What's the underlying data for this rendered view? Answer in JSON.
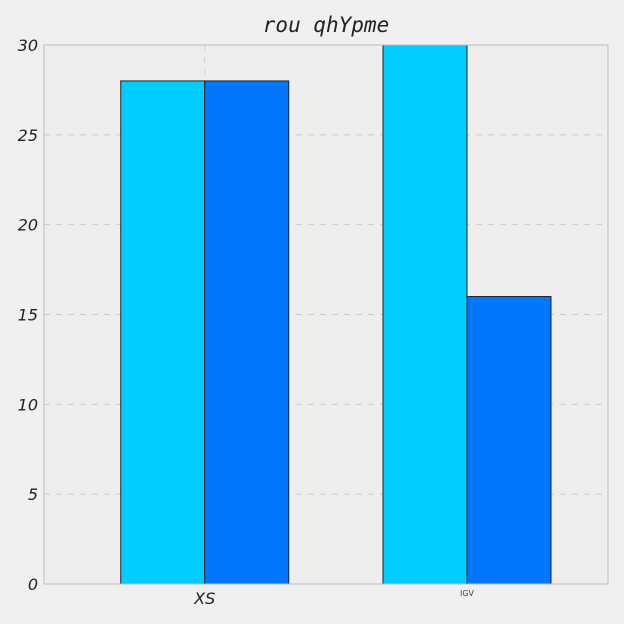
{
  "chart_data": {
    "type": "bar",
    "title": "rou qhYpme",
    "xlabel": "",
    "ylabel": "",
    "categories": [
      "XS",
      "IGV"
    ],
    "series": [
      {
        "values": [
          28,
          30
        ],
        "color": "#00ccff"
      },
      {
        "values": [
          28,
          16
        ],
        "color": "#0077ff"
      }
    ],
    "ylim": [
      0,
      30
    ],
    "yticks": [
      0,
      5,
      10,
      15,
      20,
      25,
      30
    ],
    "grid": true,
    "legend": "none"
  },
  "colors": {
    "figure_background": "#f0f0f0",
    "axes_background": "#eeeeee",
    "axes_border": "#bcbcbc",
    "grid": "#cbcbcb",
    "bar_edge": "#222222"
  }
}
